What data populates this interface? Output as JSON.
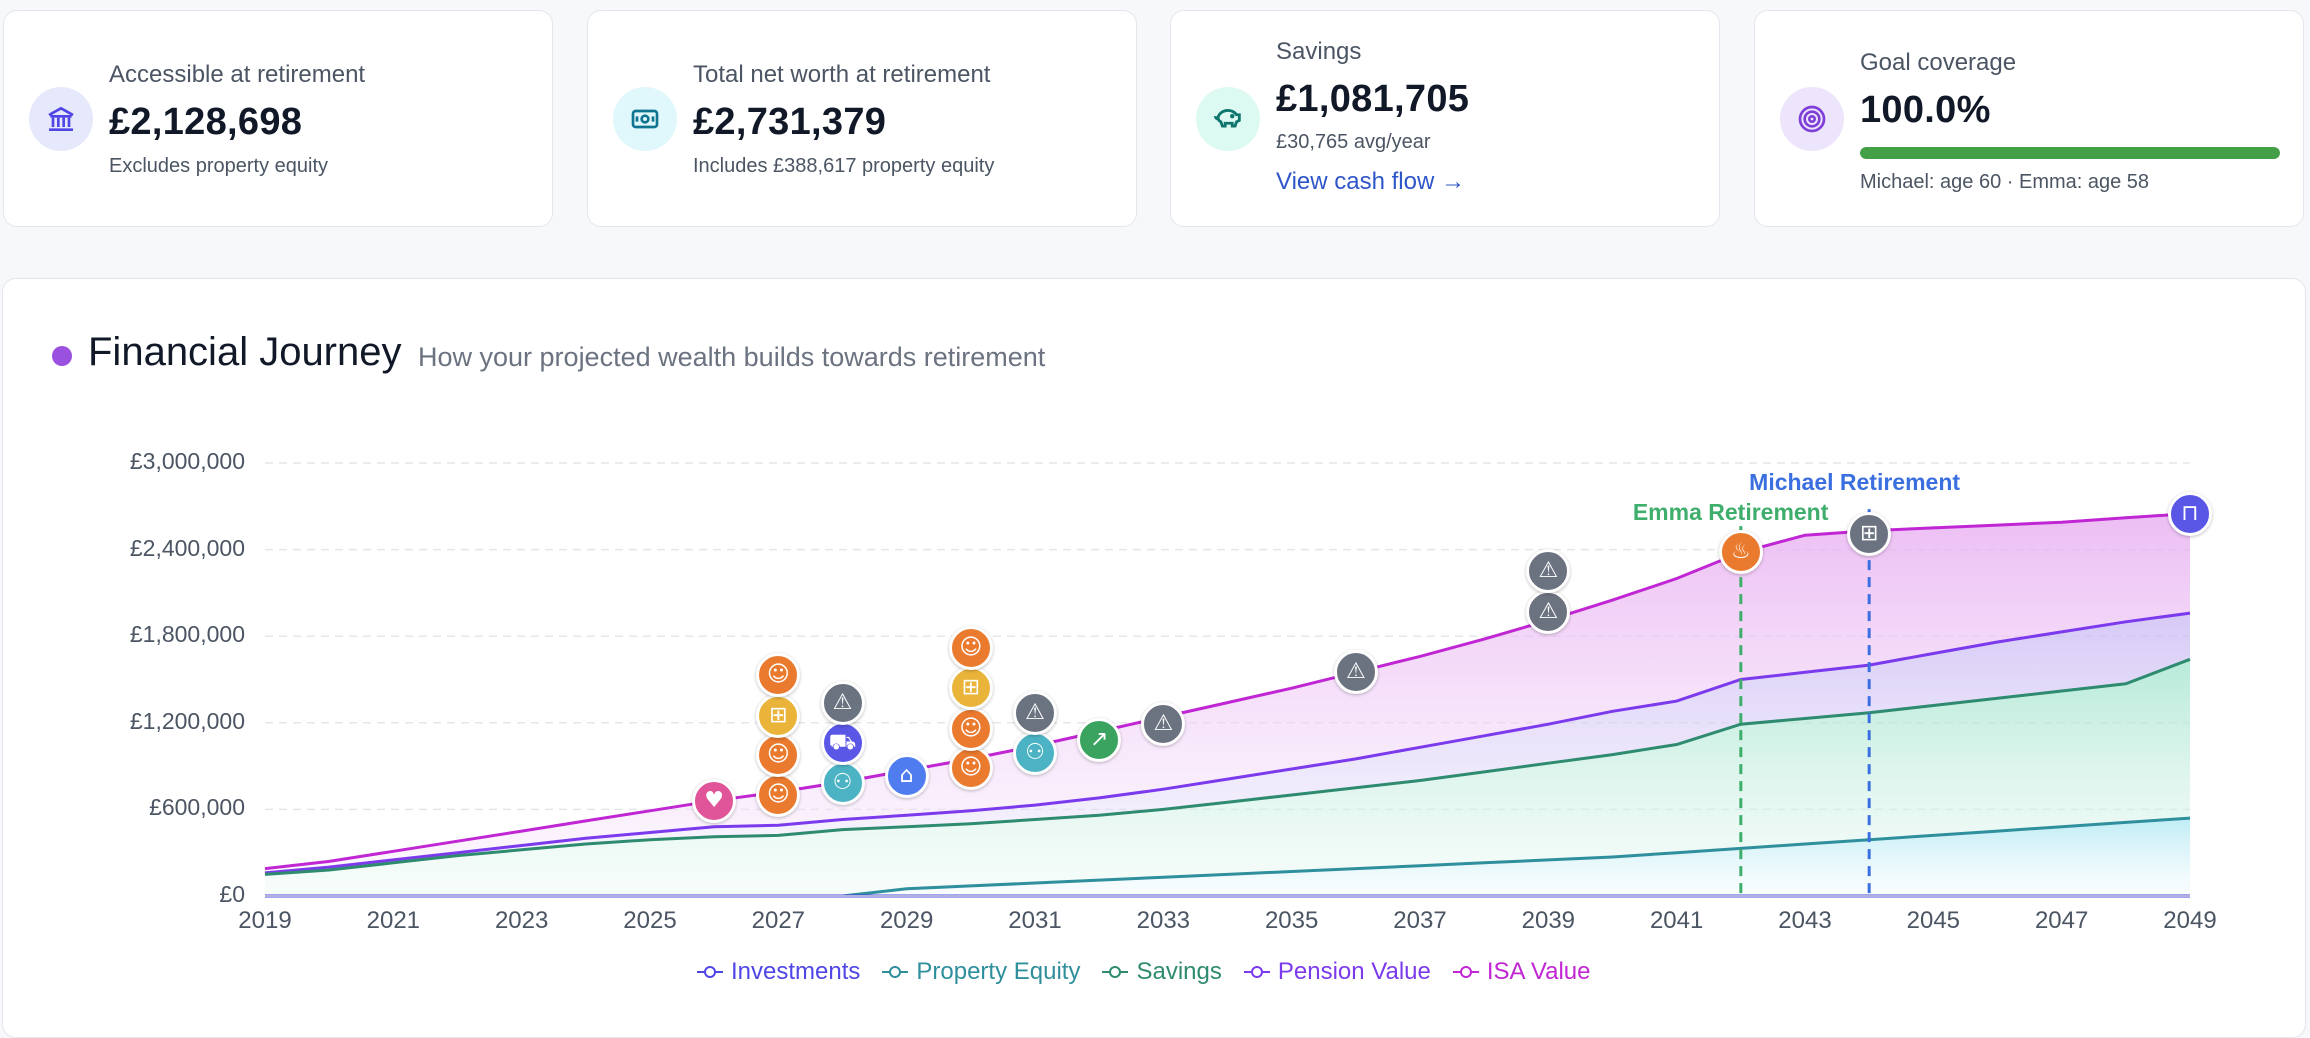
{
  "cards": [
    {
      "label": "Accessible at retirement",
      "value": "£2,128,698",
      "sub": "Excludes property equity",
      "icon": "bank-icon",
      "icon_bg": "#e6e8fb",
      "icon_color": "#4f46e5"
    },
    {
      "label": "Total net worth at retirement",
      "value": "£2,731,379",
      "sub": "Includes £388,617 property equity",
      "icon": "cash-icon",
      "icon_bg": "#e0f7fb",
      "icon_color": "#0e7490"
    },
    {
      "label": "Savings",
      "value": "£1,081,705",
      "sub": "£30,765 avg/year",
      "link": "View cash flow →",
      "icon": "piggy-bank-icon",
      "icon_bg": "#dcfaf1",
      "icon_color": "#0f766e"
    },
    {
      "label": "Goal coverage",
      "value": "100.0%",
      "sub": "Michael: age 60 · Emma: age 58",
      "progress": 1.0,
      "icon": "target-icon",
      "icon_bg": "#ede5fb",
      "icon_color": "#7e3fd6"
    }
  ],
  "panel": {
    "title": "Financial Journey",
    "subtitle": "How your projected wealth builds towards retirement"
  },
  "chart_data": {
    "type": "area",
    "x": [
      2019,
      2020,
      2021,
      2022,
      2023,
      2024,
      2025,
      2026,
      2027,
      2028,
      2029,
      2030,
      2031,
      2032,
      2033,
      2034,
      2035,
      2036,
      2037,
      2038,
      2039,
      2040,
      2041,
      2042,
      2043,
      2044,
      2045,
      2046,
      2047,
      2048,
      2049
    ],
    "x_ticks": [
      2019,
      2021,
      2023,
      2025,
      2027,
      2029,
      2031,
      2033,
      2035,
      2037,
      2039,
      2041,
      2043,
      2045,
      2047,
      2049
    ],
    "y_ticks": [
      0,
      600000,
      1200000,
      1800000,
      2400000,
      3000000
    ],
    "y_tick_labels": [
      "£0",
      "£600,000",
      "£1,200,000",
      "£1,800,000",
      "£2,400,000",
      "£3,000,000"
    ],
    "ylim": [
      0,
      3000000
    ],
    "xlim": [
      2019,
      2049
    ],
    "grid": true,
    "legend_position": "bottom",
    "series": [
      {
        "name": "Investments",
        "color": "#4f46e5",
        "values": [
          0,
          0,
          0,
          0,
          0,
          0,
          0,
          0,
          0,
          0,
          0,
          0,
          0,
          0,
          0,
          0,
          0,
          0,
          0,
          0,
          0,
          0,
          0,
          0,
          0,
          0,
          0,
          0,
          0,
          0,
          0
        ]
      },
      {
        "name": "Property Equity",
        "color": "#2f8f9d",
        "values": [
          0,
          0,
          0,
          0,
          0,
          0,
          0,
          0,
          0,
          0,
          50000,
          70000,
          90000,
          110000,
          130000,
          150000,
          170000,
          190000,
          210000,
          230000,
          250000,
          270000,
          300000,
          330000,
          360000,
          390000,
          420000,
          450000,
          480000,
          510000,
          540000
        ]
      },
      {
        "name": "Savings",
        "color": "#2e8b6f",
        "values": [
          150000,
          180000,
          230000,
          280000,
          320000,
          360000,
          390000,
          410000,
          420000,
          460000,
          480000,
          500000,
          530000,
          560000,
          600000,
          650000,
          700000,
          750000,
          800000,
          860000,
          920000,
          980000,
          1050000,
          1190000,
          1230000,
          1270000,
          1320000,
          1370000,
          1420000,
          1470000,
          1640000
        ]
      },
      {
        "name": "Pension Value",
        "color": "#7c3aed",
        "values": [
          160000,
          200000,
          250000,
          300000,
          350000,
          400000,
          440000,
          480000,
          490000,
          530000,
          560000,
          590000,
          630000,
          680000,
          740000,
          810000,
          880000,
          950000,
          1030000,
          1110000,
          1190000,
          1280000,
          1350000,
          1500000,
          1550000,
          1600000,
          1680000,
          1760000,
          1830000,
          1900000,
          1960000
        ]
      },
      {
        "name": "ISA Value",
        "color": "#c026d3",
        "values": [
          190000,
          240000,
          310000,
          380000,
          450000,
          520000,
          590000,
          660000,
          720000,
          790000,
          870000,
          950000,
          1040000,
          1140000,
          1240000,
          1340000,
          1440000,
          1550000,
          1660000,
          1780000,
          1910000,
          2050000,
          2200000,
          2380000,
          2500000,
          2530000,
          2550000,
          2570000,
          2590000,
          2620000,
          2650000
        ]
      }
    ],
    "annotations": [
      {
        "label": "Emma Retirement",
        "x": 2042,
        "color": "#3fae6c"
      },
      {
        "label": "Michael Retirement",
        "x": 2044,
        "color": "#3b6fe0"
      }
    ],
    "events": [
      {
        "x": 2026,
        "y": 660000,
        "icon": "heart-icon",
        "color": "#e05599"
      },
      {
        "x": 2027,
        "y": 700000,
        "icon": "baby-icon",
        "color": "#ea7a2e"
      },
      {
        "x": 2027,
        "y": 980000,
        "icon": "baby-icon",
        "color": "#ea7a2e"
      },
      {
        "x": 2027,
        "y": 1250000,
        "icon": "gift-icon",
        "color": "#eab43a"
      },
      {
        "x": 2027,
        "y": 1530000,
        "icon": "baby-icon",
        "color": "#ea7a2e"
      },
      {
        "x": 2028,
        "y": 780000,
        "icon": "people-icon",
        "color": "#4bb3c4"
      },
      {
        "x": 2028,
        "y": 1060000,
        "icon": "car-icon",
        "color": "#5b57e6"
      },
      {
        "x": 2028,
        "y": 1340000,
        "icon": "warning-icon",
        "color": "#6b7280"
      },
      {
        "x": 2029,
        "y": 830000,
        "icon": "home-icon",
        "color": "#4f7df0"
      },
      {
        "x": 2030,
        "y": 890000,
        "icon": "baby-icon",
        "color": "#ea7a2e"
      },
      {
        "x": 2030,
        "y": 1160000,
        "icon": "baby-icon",
        "color": "#ea7a2e"
      },
      {
        "x": 2030,
        "y": 1440000,
        "icon": "gift-icon",
        "color": "#eab43a"
      },
      {
        "x": 2030,
        "y": 1720000,
        "icon": "baby-icon",
        "color": "#ea7a2e"
      },
      {
        "x": 2031,
        "y": 990000,
        "icon": "people-icon",
        "color": "#4bb3c4"
      },
      {
        "x": 2031,
        "y": 1270000,
        "icon": "warning-icon",
        "color": "#6b7280"
      },
      {
        "x": 2032,
        "y": 1080000,
        "icon": "trend-up-icon",
        "color": "#3aa35f"
      },
      {
        "x": 2033,
        "y": 1190000,
        "icon": "warning-icon",
        "color": "#6b7280"
      },
      {
        "x": 2036,
        "y": 1550000,
        "icon": "warning-icon",
        "color": "#6b7280"
      },
      {
        "x": 2039,
        "y": 1970000,
        "icon": "warning-icon",
        "color": "#6b7280"
      },
      {
        "x": 2039,
        "y": 2250000,
        "icon": "warning-icon",
        "color": "#6b7280"
      },
      {
        "x": 2042,
        "y": 2380000,
        "icon": "flame-icon",
        "color": "#ea7a2e"
      },
      {
        "x": 2044,
        "y": 2510000,
        "icon": "gift-icon",
        "color": "#6b7280"
      },
      {
        "x": 2049,
        "y": 2650000,
        "icon": "bank-icon",
        "color": "#5b57e6"
      }
    ]
  }
}
